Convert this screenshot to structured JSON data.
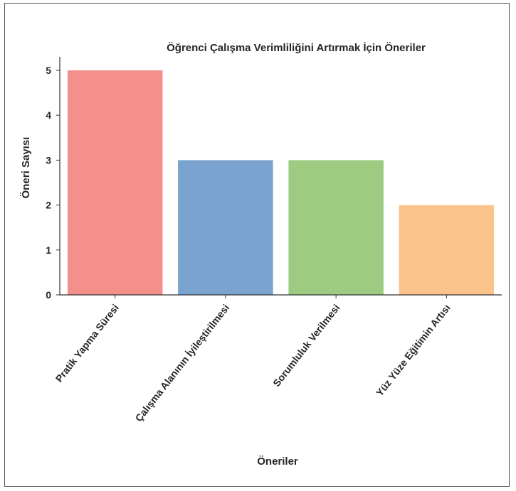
{
  "chart_data": {
    "type": "bar",
    "title": "Öğrenci Çalışma Verimliliğini Artırmak İçin Öneriler",
    "xlabel": "Öneriler",
    "ylabel": "Öneri Sayısı",
    "categories": [
      "Pratik Yapma Süresi",
      "Çalışma Alanının İyileştirilmesi",
      "Sorumluluk Verilmesi",
      "Yüz Yüze Eğitimin Artısı"
    ],
    "values": [
      5,
      3,
      3,
      2
    ],
    "colors": [
      "#f4908c",
      "#7ba3cf",
      "#9ecb82",
      "#fbc48c"
    ],
    "ylim": [
      0,
      5.3
    ],
    "yticks": [
      0,
      1,
      2,
      3,
      4,
      5
    ],
    "grid": false,
    "legend": "none"
  }
}
